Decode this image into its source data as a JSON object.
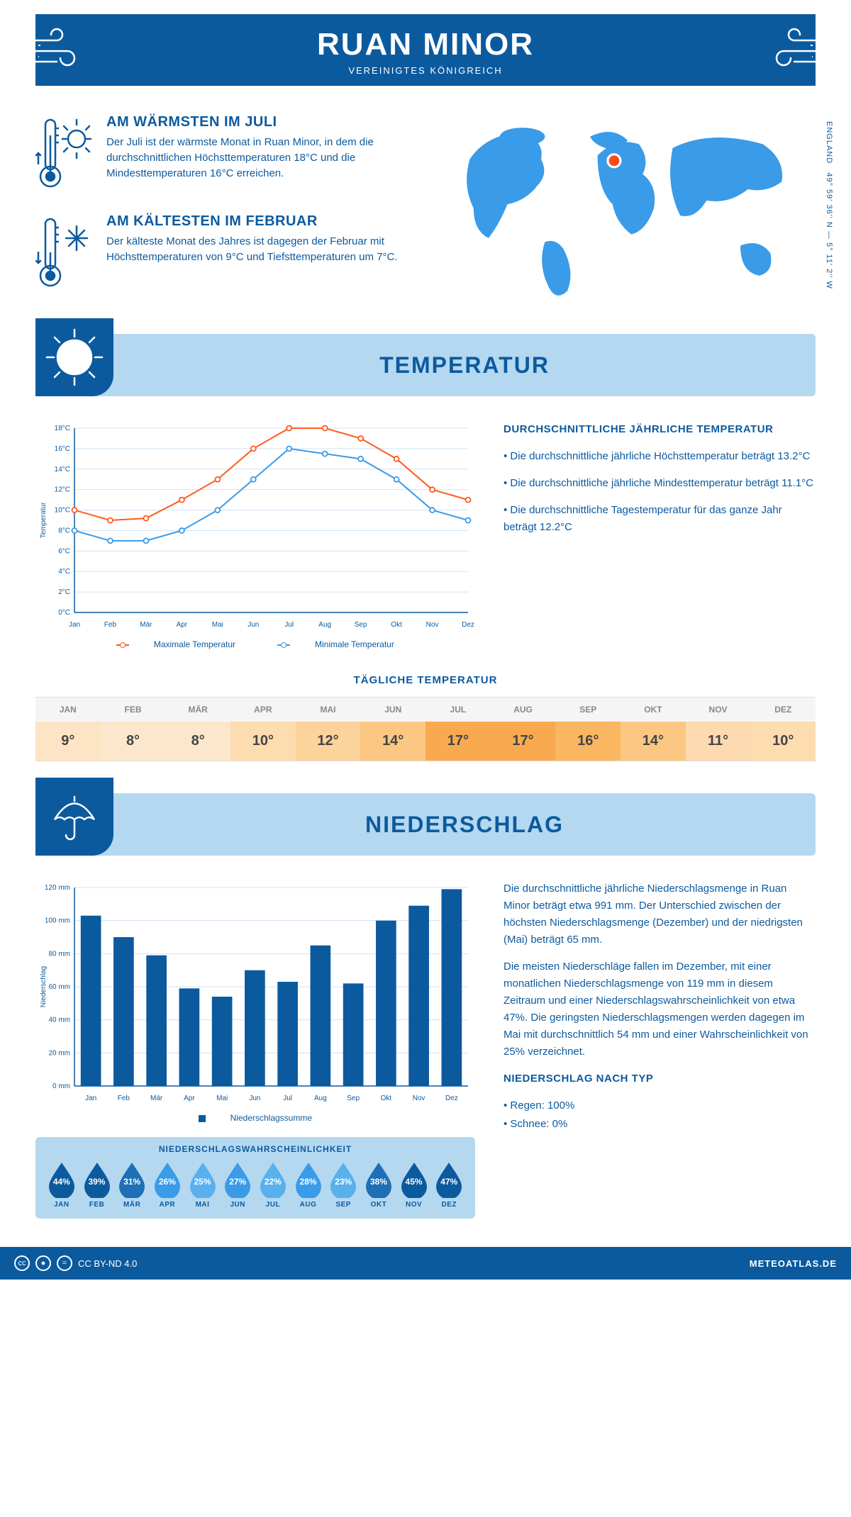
{
  "header": {
    "title": "RUAN MINOR",
    "subtitle": "VEREINIGTES KÖNIGREICH"
  },
  "coords": "49° 59' 36'' N — 5° 11' 2'' W",
  "region": "ENGLAND",
  "facts": {
    "warm": {
      "title": "AM WÄRMSTEN IM JULI",
      "text": "Der Juli ist der wärmste Monat in Ruan Minor, in dem die durchschnittlichen Höchsttemperaturen 18°C und die Mindesttemperaturen 16°C erreichen."
    },
    "cold": {
      "title": "AM KÄLTESTEN IM FEBRUAR",
      "text": "Der kälteste Monat des Jahres ist dagegen der Februar mit Höchsttemperaturen von 9°C und Tiefsttemperaturen um 7°C."
    }
  },
  "sections": {
    "temp": "TEMPERATUR",
    "precip": "NIEDERSCHLAG"
  },
  "months": [
    "Jan",
    "Feb",
    "Mär",
    "Apr",
    "Mai",
    "Jun",
    "Jul",
    "Aug",
    "Sep",
    "Okt",
    "Nov",
    "Dez"
  ],
  "months_upper": [
    "JAN",
    "FEB",
    "MÄR",
    "APR",
    "MAI",
    "JUN",
    "JUL",
    "AUG",
    "SEP",
    "OKT",
    "NOV",
    "DEZ"
  ],
  "temp_chart": {
    "type": "line",
    "ylabel": "Temperatur",
    "ylim": [
      0,
      18
    ],
    "ytick_step": 2,
    "y_unit": "°C",
    "max": {
      "label": "Maximale Temperatur",
      "color": "#ff5a1f",
      "values": [
        10,
        9,
        9.2,
        11,
        13,
        16,
        18,
        18,
        17,
        15,
        12,
        11
      ]
    },
    "min": {
      "label": "Minimale Temperatur",
      "color": "#3a9be8",
      "values": [
        8,
        7,
        7,
        8,
        10,
        13,
        16,
        15.5,
        15,
        13,
        10,
        9
      ]
    },
    "grid_color": "#cfe3f5",
    "axis_color": "#0c5a9e"
  },
  "temp_side": {
    "title": "DURCHSCHNITTLICHE JÄHRLICHE TEMPERATUR",
    "b1": "• Die durchschnittliche jährliche Höchsttemperatur beträgt 13.2°C",
    "b2": "• Die durchschnittliche jährliche Mindesttemperatur beträgt 11.1°C",
    "b3": "• Die durchschnittliche Tagestemperatur für das ganze Jahr beträgt 12.2°C"
  },
  "daily_title": "TÄGLICHE TEMPERATUR",
  "daily_values": [
    "9°",
    "8°",
    "8°",
    "10°",
    "12°",
    "14°",
    "17°",
    "17°",
    "16°",
    "14°",
    "11°",
    "10°"
  ],
  "daily_colors": [
    "#fde4c4",
    "#fde7cc",
    "#fde7cc",
    "#fddcb0",
    "#fcd39a",
    "#fbc783",
    "#f9a94f",
    "#f9a94f",
    "#fab661",
    "#fbc783",
    "#fddab0",
    "#fddcb0"
  ],
  "precip_chart": {
    "type": "bar",
    "ylabel": "Niederschlag",
    "ylim": [
      0,
      120
    ],
    "ytick_step": 20,
    "y_unit": " mm",
    "values": [
      103,
      90,
      79,
      59,
      54,
      70,
      63,
      85,
      62,
      100,
      109,
      119
    ],
    "bar_color": "#0c5a9e",
    "grid_color": "#cfe3f5",
    "legend": "Niederschlagssumme"
  },
  "precip_text": {
    "p1": "Die durchschnittliche jährliche Niederschlagsmenge in Ruan Minor beträgt etwa 991 mm. Der Unterschied zwischen der höchsten Niederschlagsmenge (Dezember) und der niedrigsten (Mai) beträgt 65 mm.",
    "p2": "Die meisten Niederschläge fallen im Dezember, mit einer monatlichen Niederschlagsmenge von 119 mm in diesem Zeitraum und einer Niederschlagswahrscheinlichkeit von etwa 47%. Die geringsten Niederschlagsmengen werden dagegen im Mai mit durchschnittlich 54 mm und einer Wahrscheinlichkeit von 25% verzeichnet.",
    "type_title": "NIEDERSCHLAG NACH TYP",
    "type1": "• Regen: 100%",
    "type2": "• Schnee: 0%"
  },
  "prob": {
    "title": "NIEDERSCHLAGSWAHRSCHEINLICHKEIT",
    "values": [
      "44%",
      "39%",
      "31%",
      "26%",
      "25%",
      "27%",
      "22%",
      "28%",
      "23%",
      "38%",
      "45%",
      "47%"
    ],
    "colors": [
      "#0c5a9e",
      "#0c5a9e",
      "#1e6fb5",
      "#3a9be8",
      "#5ab0ed",
      "#3a9be8",
      "#5ab0ed",
      "#3a9be8",
      "#5ab0ed",
      "#1e6fb5",
      "#0c5a9e",
      "#0c5a9e"
    ]
  },
  "footer": {
    "license": "CC BY-ND 4.0",
    "site": "METEOATLAS.DE"
  }
}
